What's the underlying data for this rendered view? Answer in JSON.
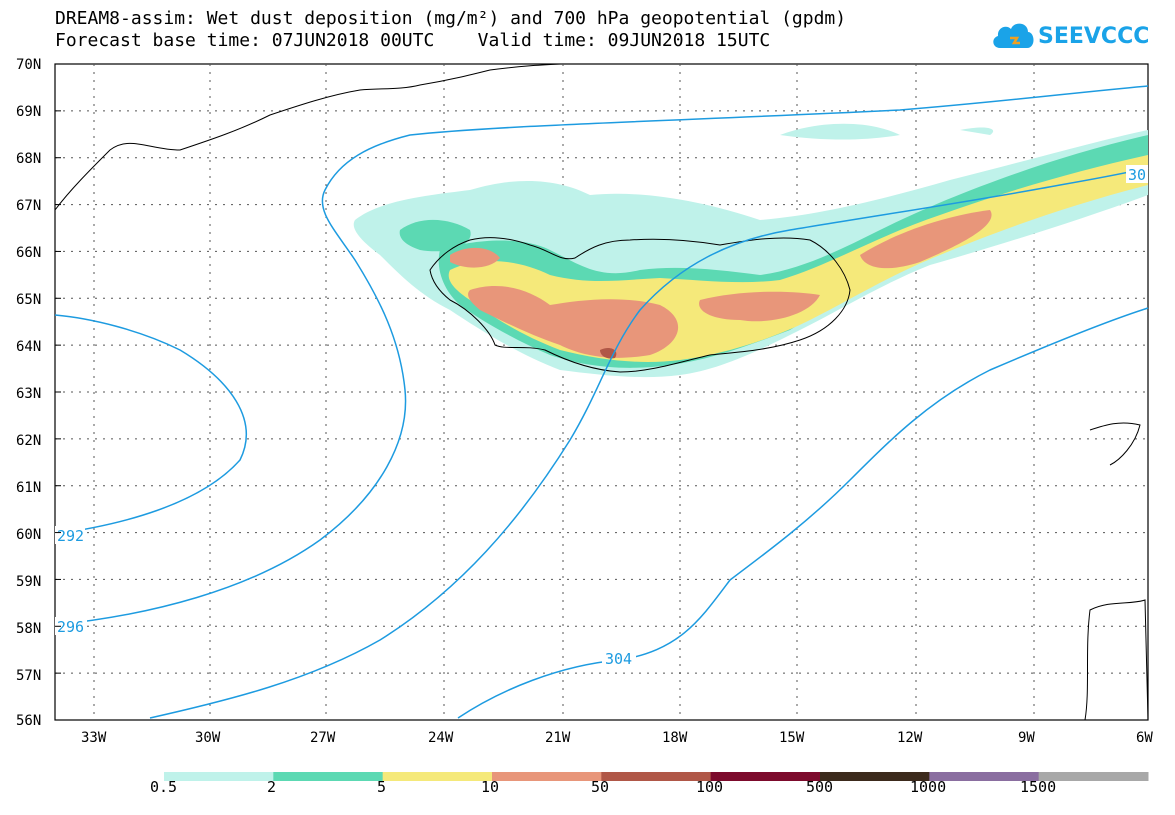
{
  "title": {
    "line1": "DREAM8-assim: Wet dust deposition (mg/m²) and 700 hPa geopotential (gpdm)",
    "line2": "Forecast base time: 07JUN2018 00UTC    Valid time: 09JUN2018 15UTC"
  },
  "logo": {
    "text": "SEEVCCC",
    "icon": "cloud-icon",
    "color": "#1aa3e8"
  },
  "map": {
    "lat_labels": [
      "70N",
      "69N",
      "68N",
      "67N",
      "66N",
      "65N",
      "64N",
      "63N",
      "62N",
      "61N",
      "60N",
      "59N",
      "58N",
      "57N",
      "56N"
    ],
    "lon_labels": [
      "33W",
      "30W",
      "27W",
      "24W",
      "21W",
      "18W",
      "15W",
      "12W",
      "9W",
      "6W"
    ],
    "contour_color": "#1d9be0",
    "contour_labels": [
      "292",
      "296",
      "304",
      "30"
    ]
  },
  "colorbar": {
    "colors": [
      "#bff2ea",
      "#5cd9b3",
      "#f5e97a",
      "#e8967a",
      "#b05747",
      "#7c0a2c",
      "#3c2a1c",
      "#8a6ea0",
      "#a8a8a8"
    ],
    "labels": [
      "0.5",
      "2",
      "5",
      "10",
      "50",
      "100",
      "500",
      "1000",
      "1500"
    ]
  }
}
